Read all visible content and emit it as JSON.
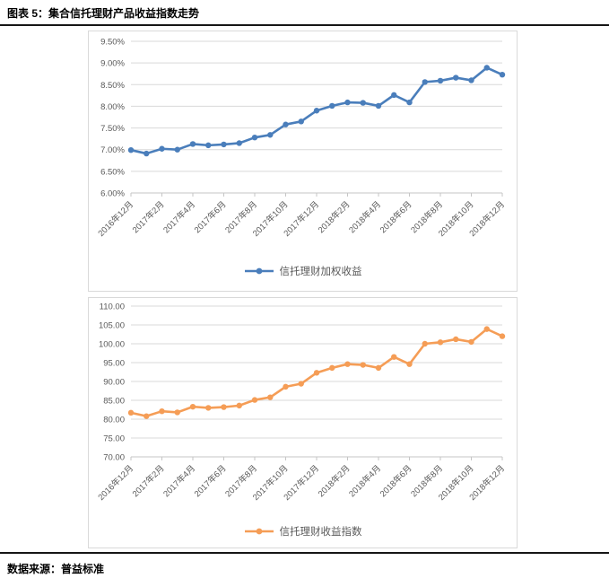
{
  "header": {
    "title": "图表 5：集合信托理财产品收益指数走势"
  },
  "footer": {
    "label": "数据来源：",
    "source": "普益标准"
  },
  "colors": {
    "series_blue": "#4a7ebb",
    "series_orange": "#f59d56",
    "grid": "#d9d9d9",
    "axis_line": "#c6c6c6",
    "axis_text": "#595959",
    "chart_border": "#d9d9d9",
    "rule": "#161616"
  },
  "chart_data": [
    {
      "type": "line",
      "categories": [
        "2016年12月",
        "2017年1月",
        "2017年2月",
        "2017年3月",
        "2017年4月",
        "2017年5月",
        "2017年6月",
        "2017年7月",
        "2017年8月",
        "2017年9月",
        "2017年10月",
        "2017年11月",
        "2017年12月",
        "2018年1月",
        "2018年2月",
        "2018年3月",
        "2018年4月",
        "2018年5月",
        "2018年6月",
        "2018年7月",
        "2018年8月",
        "2018年9月",
        "2018年10月",
        "2018年11月",
        "2018年12月"
      ],
      "x_label_every": 2,
      "series": [
        {
          "name": "信托理财加权收益",
          "color_key": "series_blue",
          "values": [
            6.99,
            6.91,
            7.02,
            7.0,
            7.13,
            7.1,
            7.12,
            7.15,
            7.28,
            7.34,
            7.58,
            7.65,
            7.9,
            8.01,
            8.09,
            8.08,
            8.01,
            8.26,
            8.09,
            8.56,
            8.59,
            8.66,
            8.6,
            8.89,
            8.73
          ]
        }
      ],
      "ylim": [
        6.0,
        9.5
      ],
      "ytick_step": 0.5,
      "ytick_format": "percent2",
      "ytick_labels": [
        "9.50%",
        "9.00%",
        "8.50%",
        "8.00%",
        "7.50%",
        "7.00%",
        "6.50%",
        "6.00%"
      ],
      "grid": true,
      "legend_position": "bottom"
    },
    {
      "type": "line",
      "categories": [
        "2016年12月",
        "2017年1月",
        "2017年2月",
        "2017年3月",
        "2017年4月",
        "2017年5月",
        "2017年6月",
        "2017年7月",
        "2017年8月",
        "2017年9月",
        "2017年10月",
        "2017年11月",
        "2017年12月",
        "2018年1月",
        "2018年2月",
        "2018年3月",
        "2018年4月",
        "2018年5月",
        "2018年6月",
        "2018年7月",
        "2018年8月",
        "2018年9月",
        "2018年10月",
        "2018年11月",
        "2018年12月"
      ],
      "x_label_every": 2,
      "series": [
        {
          "name": "信托理财收益指数",
          "color_key": "series_orange",
          "values": [
            81.7,
            80.8,
            82.1,
            81.8,
            83.3,
            83.0,
            83.2,
            83.6,
            85.1,
            85.8,
            88.6,
            89.4,
            92.3,
            93.6,
            94.6,
            94.4,
            93.6,
            96.5,
            94.6,
            100.0,
            100.4,
            101.2,
            100.5,
            103.9,
            102.0
          ]
        }
      ],
      "ylim": [
        70.0,
        110.0
      ],
      "ytick_step": 5.0,
      "ytick_format": "fixed2",
      "ytick_labels": [
        "110.00",
        "105.00",
        "100.00",
        "95.00",
        "90.00",
        "85.00",
        "80.00",
        "75.00",
        "70.00"
      ],
      "grid": true,
      "legend_position": "bottom"
    }
  ]
}
